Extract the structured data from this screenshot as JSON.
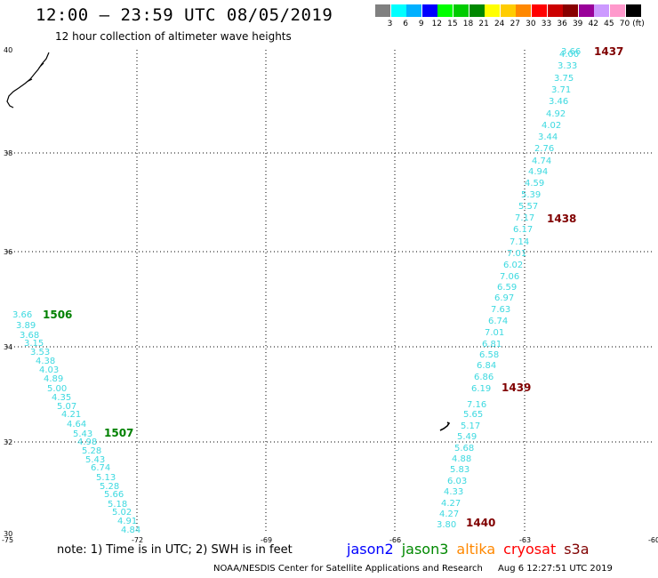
{
  "header": {
    "title": "12:00 – 23:59 UTC 08/05/2019",
    "subtitle": "12 hour collection of altimeter wave heights"
  },
  "scale": {
    "unit": "(ft)",
    "items": [
      {
        "label": "3",
        "color": "#808080"
      },
      {
        "label": "6",
        "color": "#00ffff"
      },
      {
        "label": "9",
        "color": "#00b0ff"
      },
      {
        "label": "12",
        "color": "#0000ff"
      },
      {
        "label": "15",
        "color": "#00ff00"
      },
      {
        "label": "18",
        "color": "#00cc00"
      },
      {
        "label": "21",
        "color": "#008800"
      },
      {
        "label": "24",
        "color": "#ffff00"
      },
      {
        "label": "27",
        "color": "#ffcc00"
      },
      {
        "label": "30",
        "color": "#ff8800"
      },
      {
        "label": "33",
        "color": "#ff0000"
      },
      {
        "label": "36",
        "color": "#cc0000"
      },
      {
        "label": "39",
        "color": "#880000"
      },
      {
        "label": "42",
        "color": "#990099"
      },
      {
        "label": "45",
        "color": "#cc99ff"
      },
      {
        "label": "70",
        "color": "#ff99cc"
      },
      {
        "label": "",
        "color": "#000000"
      }
    ]
  },
  "map": {
    "lon_ticks": [
      "-75",
      "-72",
      "-69",
      "-66",
      "-63",
      "-60"
    ],
    "lat_ticks": [
      "40",
      "38",
      "36",
      "34",
      "32",
      "30"
    ],
    "value_color": "#3dd9e0",
    "tracks": [
      {
        "name": "east-track",
        "values": [
          "3.66",
          "4.00",
          "3.33",
          "3.75",
          "3.71",
          "3.46",
          "4.92",
          "4.02",
          "3.44",
          "2.76",
          "4.74",
          "4.94",
          "4.59",
          "5.39",
          "5.57",
          "7.17",
          "6.17",
          "7.14",
          "7.01",
          "6.02",
          "7.06",
          "6.59",
          "6.97",
          "7.63",
          "6.74",
          "7.01",
          "6.81",
          "6.58",
          "6.84",
          "6.86",
          "6.19",
          "7.16",
          "5.65",
          "5.17",
          "5.49",
          "5.68",
          "4.88",
          "5.83",
          "6.03",
          "4.33",
          "4.27",
          "4.27",
          "3.80"
        ]
      },
      {
        "name": "west-track",
        "values": [
          "3.66",
          "3.89",
          "3.68",
          "3.15",
          "3.53",
          "4.38",
          "4.03",
          "4.89",
          "5.00",
          "4.35",
          "5.07",
          "4.21",
          "4.64",
          "5.43",
          "4.98",
          "5.28",
          "5.43",
          "6.74",
          "5.13",
          "5.28",
          "5.66",
          "5.18",
          "5.02",
          "4.91",
          "4.84"
        ]
      }
    ],
    "time_labels": [
      {
        "text": "1437",
        "color": "#800000"
      },
      {
        "text": "1438",
        "color": "#800000"
      },
      {
        "text": "1439",
        "color": "#800000"
      },
      {
        "text": "1440",
        "color": "#800000"
      },
      {
        "text": "1506",
        "color": "#008000"
      },
      {
        "text": "1507",
        "color": "#008000"
      }
    ]
  },
  "note": "note:  1) Time is in UTC;  2) SWH is in feet",
  "legend": [
    {
      "text": "jason2",
      "color": "#0000ff"
    },
    {
      "text": "jason3",
      "color": "#008800"
    },
    {
      "text": "altika",
      "color": "#ff8800"
    },
    {
      "text": "cryosat",
      "color": "#ff0000"
    },
    {
      "text": "s3a",
      "color": "#800000"
    }
  ],
  "footer": {
    "credit": "NOAA/NESDIS Center for Satellite Applications and Research",
    "timestamp": "Aug  6 12:27:51 UTC 2019"
  }
}
